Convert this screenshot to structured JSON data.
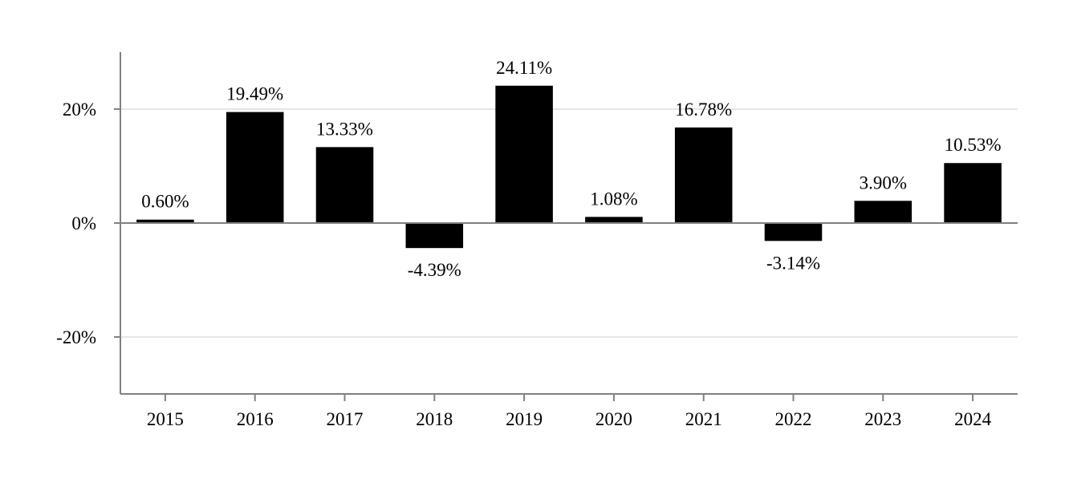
{
  "chart_data": {
    "type": "bar",
    "categories": [
      "2015",
      "2016",
      "2017",
      "2018",
      "2019",
      "2020",
      "2021",
      "2022",
      "2023",
      "2024"
    ],
    "values": [
      0.6,
      19.49,
      13.33,
      -4.39,
      24.11,
      1.08,
      16.78,
      -3.14,
      3.9,
      10.53
    ],
    "data_labels": [
      "0.60%",
      "19.49%",
      "13.33%",
      "-4.39%",
      "24.11%",
      "1.08%",
      "16.78%",
      "-3.14%",
      "3.90%",
      "10.53%"
    ],
    "y_ticks": [
      20,
      0,
      -20
    ],
    "y_tick_labels": [
      "20%",
      "0%",
      "-20%"
    ],
    "ylim": [
      -30,
      30
    ],
    "grid": true,
    "legend": "none",
    "title": "",
    "xlabel": "",
    "ylabel": "",
    "colors": {
      "bar": "#000000",
      "grid": "#e6e6e6",
      "axis": "#808080",
      "zero_line": "#808080"
    }
  }
}
